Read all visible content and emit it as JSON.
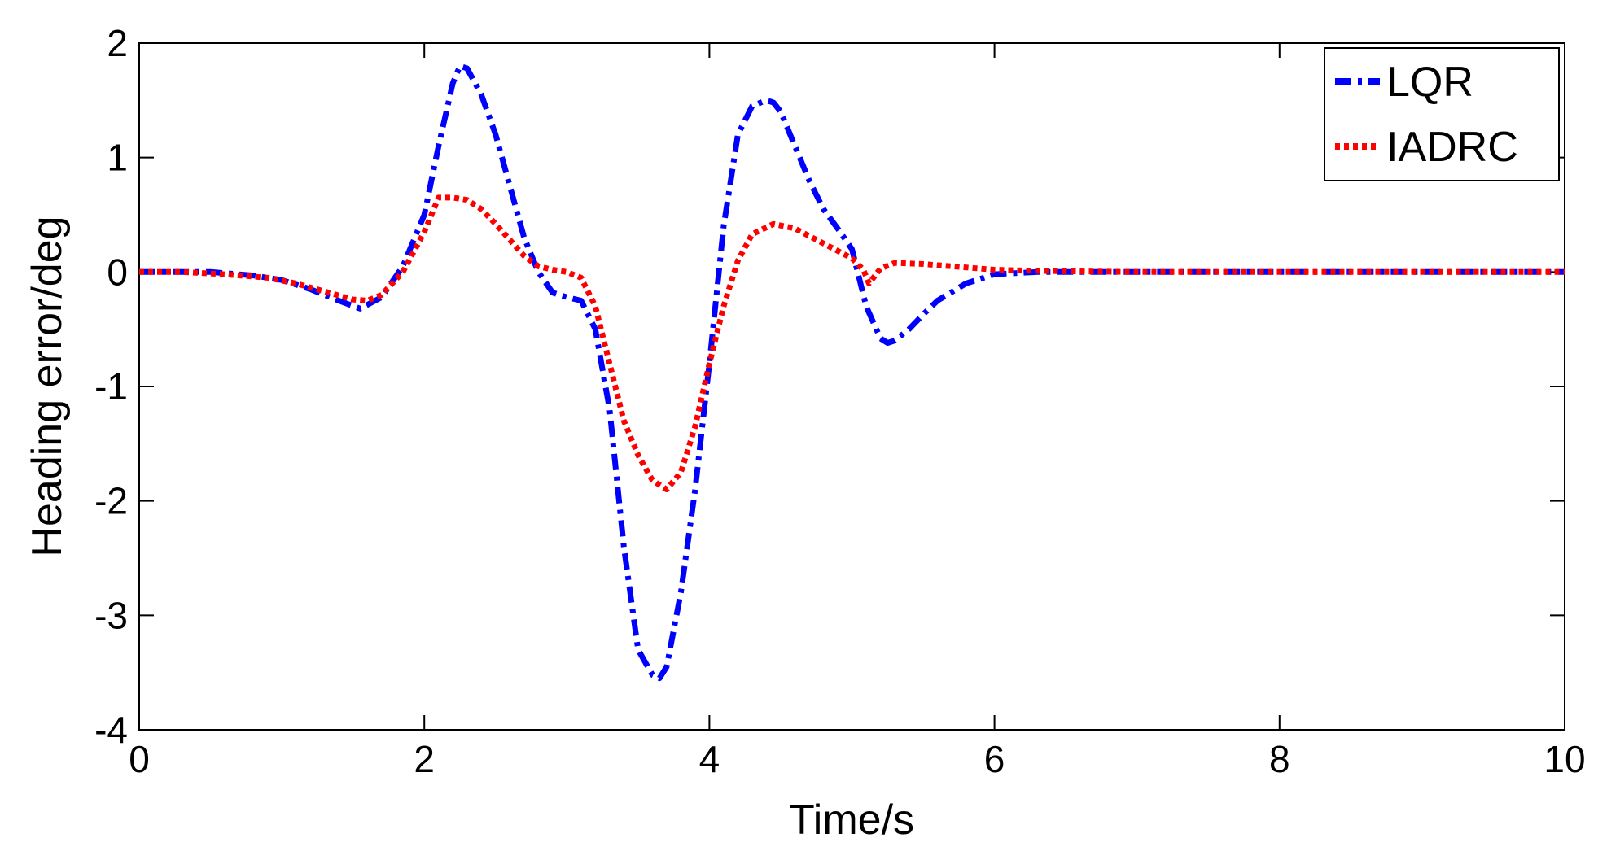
{
  "chart_data": {
    "type": "line",
    "title": "",
    "xlabel": "Time/s",
    "ylabel": "Heading error/deg",
    "xlim": [
      0,
      10
    ],
    "ylim": [
      -4,
      2
    ],
    "xticks": [
      0,
      2,
      4,
      6,
      8,
      10
    ],
    "yticks": [
      -4,
      -3,
      -2,
      -1,
      0,
      1,
      2
    ],
    "grid": false,
    "legend_position": "top-right",
    "series": [
      {
        "name": "LQR",
        "color": "#0000ff",
        "style": "dash-dot",
        "x": [
          0,
          0.2,
          0.5,
          0.8,
          1.0,
          1.2,
          1.4,
          1.55,
          1.7,
          1.85,
          2.0,
          2.1,
          2.2,
          2.25,
          2.3,
          2.4,
          2.5,
          2.6,
          2.7,
          2.8,
          2.9,
          3.0,
          3.1,
          3.2,
          3.3,
          3.4,
          3.5,
          3.6,
          3.65,
          3.7,
          3.8,
          3.9,
          4.0,
          4.1,
          4.2,
          4.3,
          4.4,
          4.45,
          4.5,
          4.6,
          4.7,
          4.8,
          4.9,
          5.0,
          5.1,
          5.2,
          5.25,
          5.3,
          5.4,
          5.5,
          5.6,
          5.8,
          6.0,
          6.3,
          6.6,
          7.0,
          8.0,
          9.0,
          10.0
        ],
        "y": [
          0.0,
          0.0,
          0.0,
          -0.03,
          -0.07,
          -0.15,
          -0.25,
          -0.32,
          -0.22,
          0.05,
          0.5,
          1.1,
          1.65,
          1.8,
          1.78,
          1.55,
          1.2,
          0.75,
          0.3,
          0.0,
          -0.18,
          -0.22,
          -0.25,
          -0.5,
          -1.2,
          -2.4,
          -3.3,
          -3.52,
          -3.55,
          -3.45,
          -2.8,
          -1.9,
          -0.8,
          0.4,
          1.2,
          1.45,
          1.5,
          1.48,
          1.4,
          1.1,
          0.8,
          0.55,
          0.38,
          0.2,
          -0.3,
          -0.58,
          -0.62,
          -0.6,
          -0.5,
          -0.37,
          -0.25,
          -0.1,
          -0.02,
          0.0,
          0.0,
          0.0,
          0.0,
          0.0,
          0.0
        ]
      },
      {
        "name": "IADRC",
        "color": "#ff0000",
        "style": "dotted",
        "x": [
          0,
          0.3,
          0.6,
          0.9,
          1.1,
          1.3,
          1.5,
          1.6,
          1.7,
          1.85,
          2.0,
          2.1,
          2.2,
          2.3,
          2.4,
          2.5,
          2.6,
          2.7,
          2.8,
          2.9,
          3.0,
          3.1,
          3.2,
          3.3,
          3.4,
          3.5,
          3.6,
          3.7,
          3.8,
          3.9,
          4.0,
          4.1,
          4.2,
          4.3,
          4.45,
          4.6,
          4.8,
          5.0,
          5.08,
          5.12,
          5.2,
          5.3,
          5.5,
          5.7,
          6.0,
          6.3,
          7.0,
          8.0,
          9.0,
          10.0
        ],
        "y": [
          0.0,
          0.0,
          -0.02,
          -0.05,
          -0.1,
          -0.17,
          -0.24,
          -0.25,
          -0.2,
          0.0,
          0.35,
          0.65,
          0.65,
          0.63,
          0.55,
          0.42,
          0.28,
          0.14,
          0.05,
          0.02,
          0.0,
          -0.05,
          -0.3,
          -0.8,
          -1.3,
          -1.6,
          -1.82,
          -1.9,
          -1.75,
          -1.35,
          -0.8,
          -0.3,
          0.1,
          0.33,
          0.42,
          0.38,
          0.25,
          0.12,
          0.02,
          -0.1,
          0.03,
          0.08,
          0.07,
          0.05,
          0.02,
          0.01,
          0.0,
          0.0,
          0.0,
          0.0
        ]
      }
    ]
  }
}
